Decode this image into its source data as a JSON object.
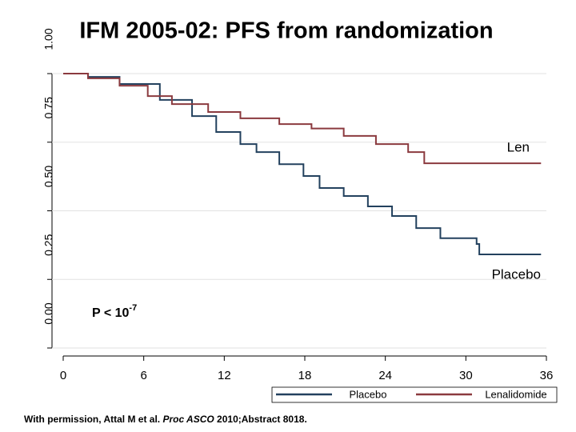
{
  "chart_data": {
    "type": "step",
    "title": "IFM 2005-02: PFS from randomization",
    "xlim": [
      0,
      36
    ],
    "xticks": [
      0,
      6,
      12,
      18,
      24,
      30,
      36
    ],
    "ylim": [
      0,
      1
    ],
    "yticks": [
      {
        "value": 0,
        "label": "0.00"
      },
      {
        "value": 0.25,
        "label": "0.25"
      },
      {
        "value": 0.5,
        "label": "0.50"
      },
      {
        "value": 0.75,
        "label": "0.75"
      },
      {
        "value": 1,
        "label": "1.00"
      }
    ],
    "grid": true,
    "series": [
      {
        "name": "Placebo",
        "color": "#23415e",
        "x": [
          0,
          1.85,
          4.2,
          7.2,
          9.6,
          11.4,
          13.2,
          14.4,
          16.1,
          17.9,
          19.1,
          20.9,
          22.7,
          24.5,
          26.3,
          28.1,
          30.8,
          31.0,
          35.6
        ],
        "values": [
          1.0,
          0.988,
          0.962,
          0.904,
          0.845,
          0.787,
          0.743,
          0.714,
          0.67,
          0.627,
          0.583,
          0.554,
          0.516,
          0.481,
          0.437,
          0.4,
          0.379,
          0.341,
          0.341
        ]
      },
      {
        "name": "Lenalidomide",
        "color": "#8b3a3f",
        "x": [
          0,
          1.85,
          4.2,
          6.3,
          8.1,
          10.8,
          13.2,
          16.1,
          18.5,
          20.9,
          23.3,
          25.7,
          26.9,
          35.6
        ],
        "values": [
          1.0,
          0.983,
          0.956,
          0.918,
          0.889,
          0.86,
          0.837,
          0.816,
          0.8,
          0.773,
          0.743,
          0.714,
          0.673,
          0.673
        ]
      }
    ],
    "annotations": [
      "Len",
      "Placebo"
    ],
    "p_value": {
      "text": "P < 10",
      "superscript": "-7"
    },
    "footnote": {
      "before": "With permission, Attal M et al. ",
      "italic": "Proc ASCO",
      "after": " 2010;Abstract 8018."
    }
  }
}
